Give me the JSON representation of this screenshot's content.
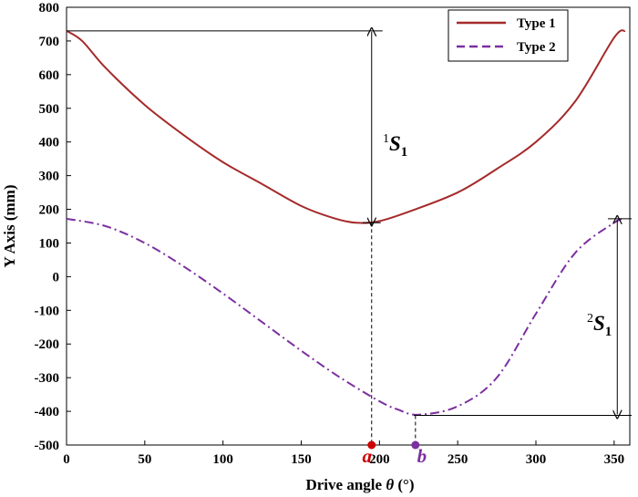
{
  "chart_data": {
    "type": "line",
    "title": "",
    "xlabel_prefix": "Drive angle ",
    "xlabel_symbol": "θ",
    "xlabel_suffix": " (°)",
    "ylabel": "Y Axis (mm)",
    "xlim": [
      0,
      360
    ],
    "ylim": [
      -500,
      800
    ],
    "xticks": [
      0,
      50,
      100,
      150,
      200,
      250,
      300,
      350
    ],
    "yticks": [
      800,
      700,
      600,
      500,
      400,
      300,
      200,
      100,
      0,
      -100,
      -200,
      -300,
      -400,
      -500
    ],
    "grid": false,
    "legend_position": "top-right",
    "series": [
      {
        "name": "Type 1",
        "color": "#a52a2a",
        "style": "solid",
        "x": [
          0,
          10,
          25,
          50,
          75,
          100,
          125,
          150,
          170,
          185,
          200,
          220,
          250,
          275,
          300,
          325,
          350,
          357
        ],
        "y": [
          730,
          700,
          620,
          510,
          420,
          340,
          275,
          210,
          175,
          160,
          165,
          195,
          250,
          320,
          400,
          520,
          710,
          730
        ]
      },
      {
        "name": "Type 2",
        "color": "#7b2fa0",
        "style": "dash-dot",
        "x": [
          0,
          25,
          50,
          75,
          100,
          125,
          150,
          175,
          200,
          212,
          225,
          250,
          275,
          300,
          325,
          350,
          357
        ],
        "y": [
          172,
          150,
          100,
          30,
          -50,
          -135,
          -220,
          -300,
          -370,
          -395,
          -410,
          -385,
          -300,
          -110,
          70,
          160,
          172
        ]
      }
    ],
    "annotations": {
      "s1_superscript": "1",
      "s1_label": "S",
      "s1_subscript": "1",
      "s2_superscript": "2",
      "s2_label": "S",
      "s2_subscript": "1",
      "s1_range": [
        160,
        730
      ],
      "s1_x": 195,
      "s2_range": [
        -412,
        172
      ],
      "s2_x": 352
    },
    "markers": [
      {
        "label": "a",
        "x": 195,
        "color": "#cc0000",
        "guide_top": 160
      },
      {
        "label": "b",
        "x": 223,
        "color": "#7b2fa0",
        "guide_top": -412
      }
    ]
  }
}
